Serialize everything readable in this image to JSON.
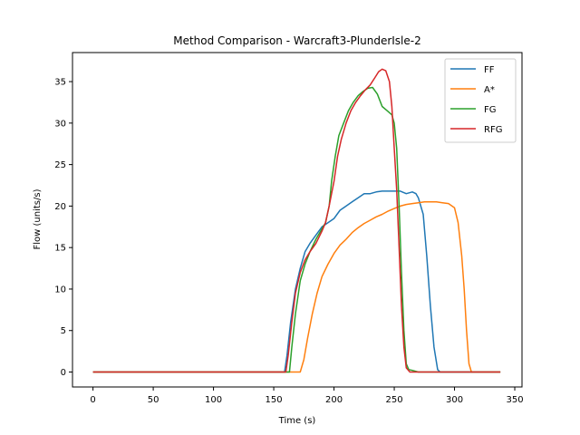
{
  "chart_data": {
    "type": "line",
    "title": "Method Comparison - Warcraft3-PlunderIsle-2",
    "xlabel": "Time (s)",
    "ylabel": "Flow (units/s)",
    "xlim": [
      -17,
      356
    ],
    "ylim": [
      -1.8,
      38.5
    ],
    "xticks": [
      0,
      50,
      100,
      150,
      200,
      250,
      300,
      350
    ],
    "yticks": [
      0,
      5,
      10,
      15,
      20,
      25,
      30,
      35
    ],
    "grid": false,
    "legend_position": "top-right",
    "series": [
      {
        "name": "FF",
        "color": "#1f77b4",
        "points": [
          [
            0,
            0
          ],
          [
            159,
            0
          ],
          [
            161,
            2
          ],
          [
            164,
            6
          ],
          [
            168,
            10
          ],
          [
            172,
            12.5
          ],
          [
            176,
            14.5
          ],
          [
            180,
            15.5
          ],
          [
            185,
            16.5
          ],
          [
            190,
            17.5
          ],
          [
            195,
            18
          ],
          [
            200,
            18.5
          ],
          [
            205,
            19.5
          ],
          [
            210,
            20
          ],
          [
            215,
            20.5
          ],
          [
            220,
            21
          ],
          [
            225,
            21.5
          ],
          [
            230,
            21.5
          ],
          [
            235,
            21.7
          ],
          [
            240,
            21.8
          ],
          [
            245,
            21.8
          ],
          [
            250,
            21.8
          ],
          [
            255,
            21.8
          ],
          [
            260,
            21.5
          ],
          [
            265,
            21.7
          ],
          [
            268,
            21.5
          ],
          [
            270,
            21
          ],
          [
            274,
            19
          ],
          [
            277,
            14
          ],
          [
            280,
            8
          ],
          [
            283,
            3
          ],
          [
            286,
            0.3
          ],
          [
            288,
            0
          ],
          [
            338,
            0
          ]
        ]
      },
      {
        "name": "A*",
        "color": "#ff7f0e",
        "points": [
          [
            0,
            0
          ],
          [
            172,
            0
          ],
          [
            175,
            1.5
          ],
          [
            178,
            4
          ],
          [
            182,
            7
          ],
          [
            186,
            9.5
          ],
          [
            190,
            11.5
          ],
          [
            195,
            13
          ],
          [
            200,
            14.3
          ],
          [
            205,
            15.3
          ],
          [
            210,
            16
          ],
          [
            215,
            16.8
          ],
          [
            220,
            17.4
          ],
          [
            225,
            17.9
          ],
          [
            230,
            18.3
          ],
          [
            235,
            18.7
          ],
          [
            240,
            19
          ],
          [
            245,
            19.4
          ],
          [
            250,
            19.7
          ],
          [
            255,
            20
          ],
          [
            260,
            20.2
          ],
          [
            265,
            20.3
          ],
          [
            270,
            20.4
          ],
          [
            275,
            20.5
          ],
          [
            280,
            20.5
          ],
          [
            285,
            20.5
          ],
          [
            290,
            20.4
          ],
          [
            295,
            20.3
          ],
          [
            300,
            19.8
          ],
          [
            303,
            18
          ],
          [
            306,
            14
          ],
          [
            308,
            10
          ],
          [
            310,
            5
          ],
          [
            312,
            1
          ],
          [
            314,
            0
          ],
          [
            338,
            0
          ]
        ]
      },
      {
        "name": "FG",
        "color": "#2ca02c",
        "points": [
          [
            0,
            0
          ],
          [
            163,
            0
          ],
          [
            165,
            3
          ],
          [
            168,
            7
          ],
          [
            172,
            11
          ],
          [
            176,
            13
          ],
          [
            180,
            14.5
          ],
          [
            185,
            16
          ],
          [
            189,
            17
          ],
          [
            193,
            18
          ],
          [
            196,
            20
          ],
          [
            198,
            23
          ],
          [
            201,
            26
          ],
          [
            204,
            28.5
          ],
          [
            208,
            30
          ],
          [
            212,
            31.5
          ],
          [
            216,
            32.5
          ],
          [
            220,
            33.3
          ],
          [
            224,
            33.8
          ],
          [
            228,
            34.2
          ],
          [
            232,
            34.3
          ],
          [
            236,
            33.5
          ],
          [
            240,
            32
          ],
          [
            244,
            31.5
          ],
          [
            248,
            31
          ],
          [
            250,
            30
          ],
          [
            252,
            27
          ],
          [
            254,
            20
          ],
          [
            256,
            12
          ],
          [
            258,
            5
          ],
          [
            260,
            1
          ],
          [
            262,
            0.3
          ],
          [
            265,
            0.2
          ],
          [
            270,
            0
          ],
          [
            338,
            0
          ]
        ]
      },
      {
        "name": "RFG",
        "color": "#d62728",
        "points": [
          [
            0,
            0
          ],
          [
            160,
            0
          ],
          [
            162,
            2
          ],
          [
            165,
            6
          ],
          [
            168,
            9.5
          ],
          [
            172,
            12
          ],
          [
            176,
            13.5
          ],
          [
            180,
            14.5
          ],
          [
            185,
            15.5
          ],
          [
            190,
            17
          ],
          [
            193,
            18
          ],
          [
            196,
            20
          ],
          [
            200,
            23
          ],
          [
            203,
            26
          ],
          [
            206,
            28
          ],
          [
            210,
            30
          ],
          [
            214,
            31.5
          ],
          [
            218,
            32.5
          ],
          [
            222,
            33.3
          ],
          [
            226,
            34
          ],
          [
            230,
            34.6
          ],
          [
            234,
            35.5
          ],
          [
            237,
            36.2
          ],
          [
            240,
            36.5
          ],
          [
            243,
            36.3
          ],
          [
            246,
            35
          ],
          [
            248,
            32
          ],
          [
            250,
            27
          ],
          [
            252,
            22
          ],
          [
            254,
            15
          ],
          [
            256,
            8
          ],
          [
            258,
            3
          ],
          [
            260,
            0.5
          ],
          [
            263,
            0
          ],
          [
            338,
            0
          ]
        ]
      }
    ]
  }
}
